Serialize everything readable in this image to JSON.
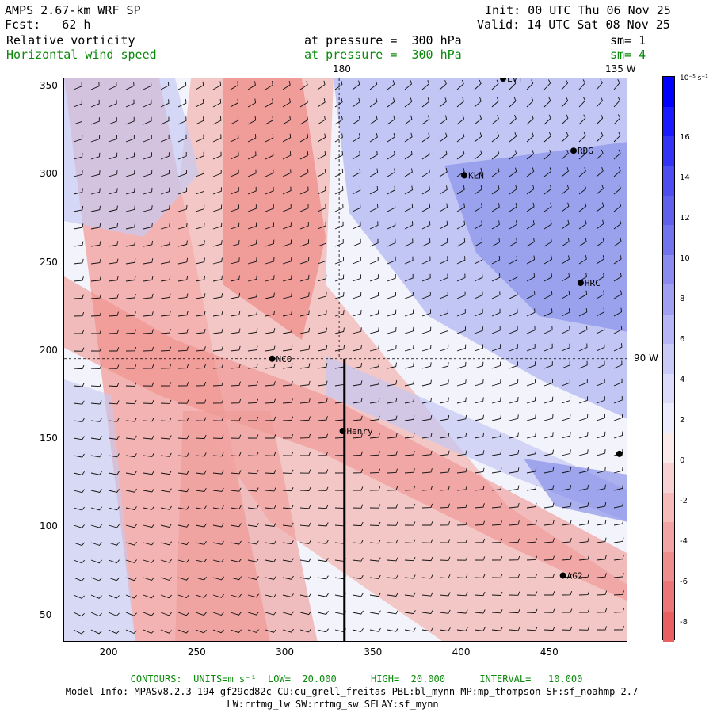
{
  "header": {
    "model": "AMPS 2.67-km WRF SP",
    "fcst": "Fcst:   62 h",
    "init": "Init: 00 UTC Thu 06 Nov 25",
    "valid": "Valid: 14 UTC Sat 08 Nov 25",
    "field1": "Relative vorticity",
    "field1_level": "at pressure =  300 hPa",
    "field1_sm": "sm= 1",
    "field2": "Horizontal wind speed",
    "field2_level": "at pressure =  300 hPa",
    "field2_sm": "sm= 4"
  },
  "map_labels": {
    "meridian_180": "180",
    "meridian_135w": "135 W",
    "meridian_90w": "90 W"
  },
  "x_ticks": [
    "200",
    "250",
    "300",
    "350",
    "400",
    "450"
  ],
  "y_ticks": [
    "50",
    "100",
    "150",
    "200",
    "250",
    "300",
    "350"
  ],
  "stations": [
    {
      "name": "LVT",
      "x": 424,
      "y": 355
    },
    {
      "name": "RDG",
      "x": 464,
      "y": 314
    },
    {
      "name": "KLN",
      "x": 402,
      "y": 300
    },
    {
      "name": "HRC",
      "x": 468,
      "y": 239
    },
    {
      "name": "NCO",
      "x": 293,
      "y": 196
    },
    {
      "name": "Henry",
      "x": 333,
      "y": 155
    },
    {
      "name": "AG2",
      "x": 458,
      "y": 73
    },
    {
      "name": "",
      "x": 490,
      "y": 142
    }
  ],
  "colorbar": {
    "units": "10⁻⁵ s⁻¹",
    "labels": [
      "16",
      "14",
      "12",
      "10",
      "8",
      "6",
      "4",
      "2",
      "0",
      "-2",
      "-4",
      "-6",
      "-8"
    ]
  },
  "footer": {
    "contours": "CONTOURS:  UNITS=m s⁻¹  LOW=  20.000      HIGH=  20.000      INTERVAL=   10.000",
    "model_info": "Model Info: MPASv8.2.3-194-gf29cd82c CU:cu_grell_freitas PBL:bl_mynn MP:mp_thompson SF:sf_noahmp 2.7",
    "model_info2": "LW:rrtmg_lw SW:rrtmg_sw SFLAY:sf_mynn"
  },
  "colors": {
    "positive": "#3f48e6",
    "negative": "#ee5a5a",
    "contour_green": "#0a8a0a"
  }
}
